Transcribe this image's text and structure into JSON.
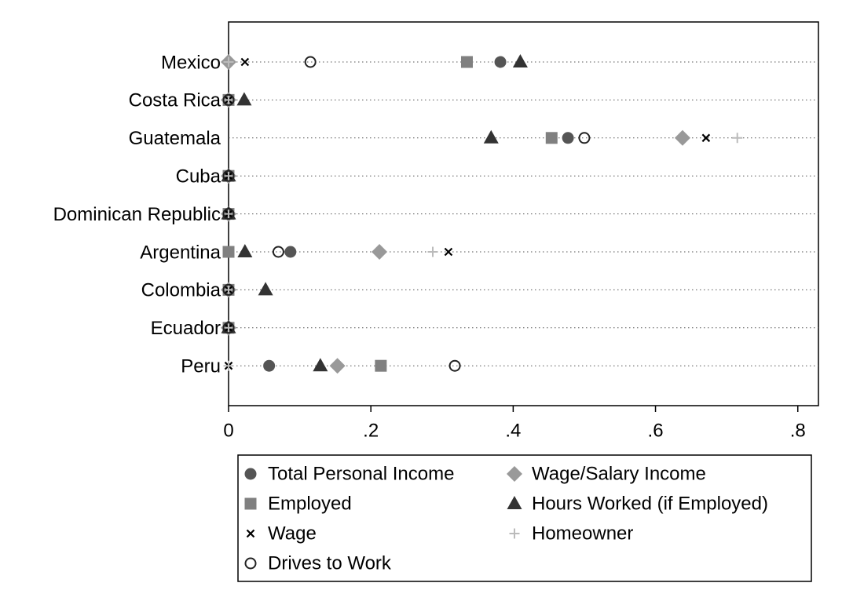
{
  "chart_data": {
    "type": "dot",
    "categories": [
      "Mexico",
      "Costa Rica",
      "Guatemala",
      "Cuba",
      "Dominican Republic",
      "Argentina",
      "Colombia",
      "Ecuador",
      "Peru"
    ],
    "series": [
      {
        "name": "Total Personal Income",
        "marker": "circle",
        "color": "#555555",
        "values": [
          0.382,
          0,
          0.477,
          0,
          0,
          0.087,
          0,
          0,
          0.057
        ]
      },
      {
        "name": "Wage/Salary Income",
        "marker": "diamond",
        "color": "#999999",
        "values": [
          0,
          0,
          0.638,
          0,
          0,
          0.212,
          0,
          0,
          0.153
        ]
      },
      {
        "name": "Employed",
        "marker": "square",
        "color": "#808080",
        "values": [
          0.335,
          0,
          0.454,
          0,
          0,
          0,
          0,
          0,
          0.214
        ]
      },
      {
        "name": "Hours Worked (if Employed)",
        "marker": "triangle",
        "color": "#333333",
        "values": [
          0.41,
          0.022,
          0.369,
          0,
          0,
          0.023,
          0.052,
          0,
          0.129
        ]
      },
      {
        "name": "Wage",
        "marker": "x",
        "color": "#000000",
        "values": [
          0.023,
          0,
          0.671,
          0,
          0,
          0.309,
          0,
          0,
          0
        ]
      },
      {
        "name": "Homeowner",
        "marker": "plus",
        "color": "#bbbbbb",
        "values": [
          0,
          0,
          0.715,
          0,
          0,
          0.287,
          0,
          0,
          0
        ]
      },
      {
        "name": "Drives to Work",
        "marker": "open-circle",
        "color": "#222222",
        "values": [
          0.115,
          0,
          0.5,
          0,
          0,
          0.07,
          0,
          0,
          0.318
        ]
      }
    ],
    "xlim": [
      0,
      0.829
    ],
    "xticks": [
      0,
      {
        "value": 0.2,
        "label": ".2"
      },
      {
        "value": 0.4,
        "label": ".4"
      },
      {
        "value": 0.6,
        "label": ".6"
      },
      {
        "value": 0.8,
        "label": ".8"
      }
    ]
  }
}
